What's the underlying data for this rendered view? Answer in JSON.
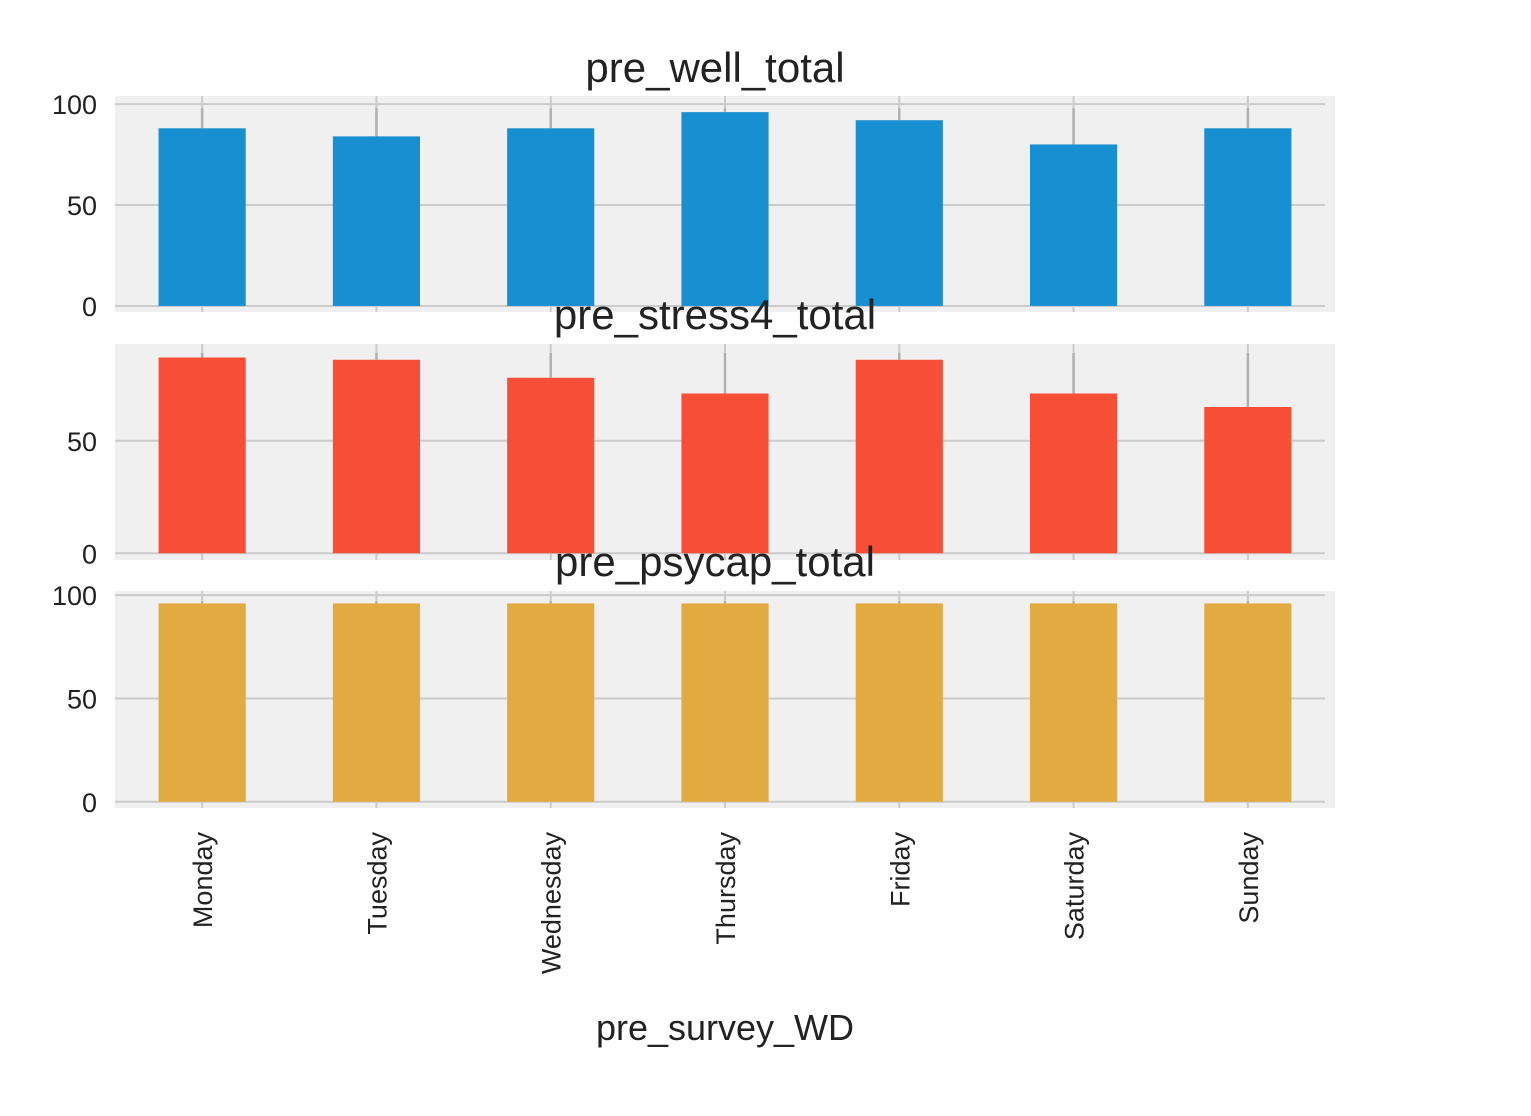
{
  "figure": {
    "xlabel": "pre_survey_WD",
    "background": "#ffffff",
    "axes_background": "#f0f0f0",
    "grid_color": "#cbcbcb"
  },
  "chart_data": [
    {
      "type": "bar",
      "title": "pre_well_total",
      "categories": [
        "Monday",
        "Tuesday",
        "Wednesday",
        "Thursday",
        "Friday",
        "Saturday",
        "Sunday"
      ],
      "values": [
        88,
        84,
        88,
        96,
        92,
        80,
        88
      ],
      "error_top": [
        98,
        98,
        98,
        98,
        98,
        98,
        98
      ],
      "color": "#188fd1",
      "ylim": [
        -3,
        104
      ],
      "yticks": [
        0,
        50,
        100
      ],
      "grid": true,
      "show_category_labels": false
    },
    {
      "type": "bar",
      "title": "pre_stress4_total",
      "categories": [
        "Monday",
        "Tuesday",
        "Wednesday",
        "Thursday",
        "Friday",
        "Saturday",
        "Sunday"
      ],
      "values": [
        87,
        86,
        78,
        71,
        86,
        71,
        65
      ],
      "error_top": [
        89,
        89,
        89,
        89,
        89,
        89,
        89
      ],
      "color": "#f74e37",
      "ylim": [
        -3,
        93
      ],
      "yticks": [
        0,
        50
      ],
      "grid": true,
      "show_category_labels": false
    },
    {
      "type": "bar",
      "title": "pre_psycap_total",
      "categories": [
        "Monday",
        "Tuesday",
        "Wednesday",
        "Thursday",
        "Friday",
        "Saturday",
        "Sunday"
      ],
      "values": [
        96,
        96,
        96,
        96,
        96,
        96,
        96
      ],
      "error_top": [
        97,
        97,
        97,
        97,
        97,
        97,
        97
      ],
      "color": "#e2ab42",
      "ylim": [
        -3,
        102
      ],
      "yticks": [
        0,
        50,
        100
      ],
      "grid": true,
      "show_category_labels": true
    }
  ]
}
